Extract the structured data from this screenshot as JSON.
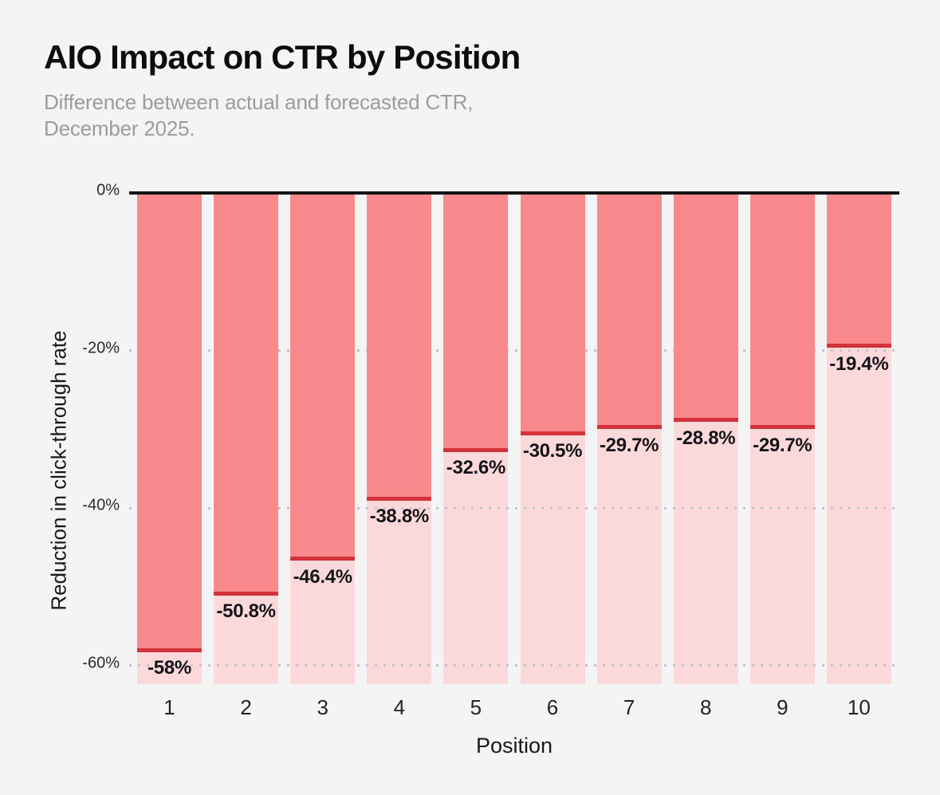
{
  "header": {
    "title": "AIO Impact on CTR by Position",
    "subtitle_lines": [
      "Difference between actual and forecasted CTR,",
      "December 2025."
    ]
  },
  "chart_data": {
    "type": "bar",
    "title": "AIO Impact on CTR by Position",
    "subtitle": "Difference between actual and forecasted CTR, December 2025.",
    "categories": [
      "1",
      "2",
      "3",
      "4",
      "5",
      "6",
      "7",
      "8",
      "9",
      "10"
    ],
    "values": [
      -58,
      -50.8,
      -46.4,
      -38.8,
      -32.6,
      -30.5,
      -29.7,
      -28.8,
      -29.7,
      -19.4
    ],
    "value_labels": [
      "-58%",
      "-50.8%",
      "-46.4%",
      "-38.8%",
      "-32.6%",
      "-30.5%",
      "-29.7%",
      "-28.8%",
      "-29.7%",
      "-19.4%"
    ],
    "xlabel": "Position",
    "ylabel": "Reduction in click-through rate",
    "y_ticks": [
      {
        "value": 0,
        "label": "0%"
      },
      {
        "value": -20,
        "label": "-20%"
      },
      {
        "value": -40,
        "label": "-40%"
      },
      {
        "value": -60,
        "label": "-60%"
      }
    ],
    "ylim": [
      -62.3,
      0
    ],
    "grid": "horizontal dotted gridlines at -20%, -40%, -60%; solid black axis at 0%",
    "legend": "none",
    "colors": {
      "background": "#f4f4f5",
      "bar_fill": "#f9898c",
      "bar_remainder_fill": "#fbd9db",
      "value_line": "#d2323a",
      "zero_axis": "#141414",
      "gridline_dots": "#c4c4ca",
      "title_text": "#0d0d0e",
      "subtitle_text": "#9b9ba1",
      "label_text": "#141418"
    }
  }
}
